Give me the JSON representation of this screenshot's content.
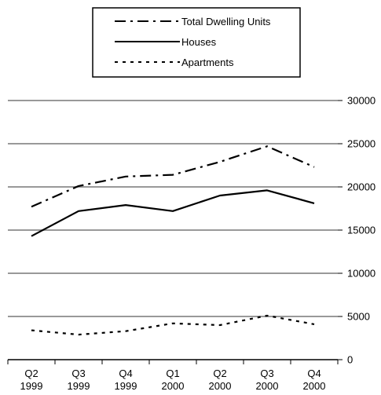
{
  "chart_data": {
    "type": "line",
    "title": "",
    "xlabel": "",
    "ylabel": "",
    "categories": [
      "Q2\n1999",
      "Q3\n1999",
      "Q4\n1999",
      "Q1\n2000",
      "Q2\n2000",
      "Q3\n2000",
      "Q4\n2000"
    ],
    "ylim": [
      0,
      30000
    ],
    "yticks": [
      0,
      5000,
      10000,
      15000,
      20000,
      25000,
      30000
    ],
    "y_axis_side": "right",
    "grid": true,
    "legend_position": "top",
    "series": [
      {
        "name": "Total Dwelling Units",
        "values": [
          17700,
          20100,
          21200,
          21400,
          22900,
          24700,
          22300
        ],
        "line_style": "dash-dot",
        "color": "#000000"
      },
      {
        "name": "Houses",
        "values": [
          14300,
          17200,
          17900,
          17200,
          19000,
          19600,
          18100
        ],
        "line_style": "solid",
        "color": "#000000"
      },
      {
        "name": "Apartments",
        "values": [
          3400,
          2900,
          3300,
          4200,
          4000,
          5100,
          4100
        ],
        "line_style": "dotted",
        "color": "#000000"
      }
    ],
    "gridline_color": "#999999"
  }
}
